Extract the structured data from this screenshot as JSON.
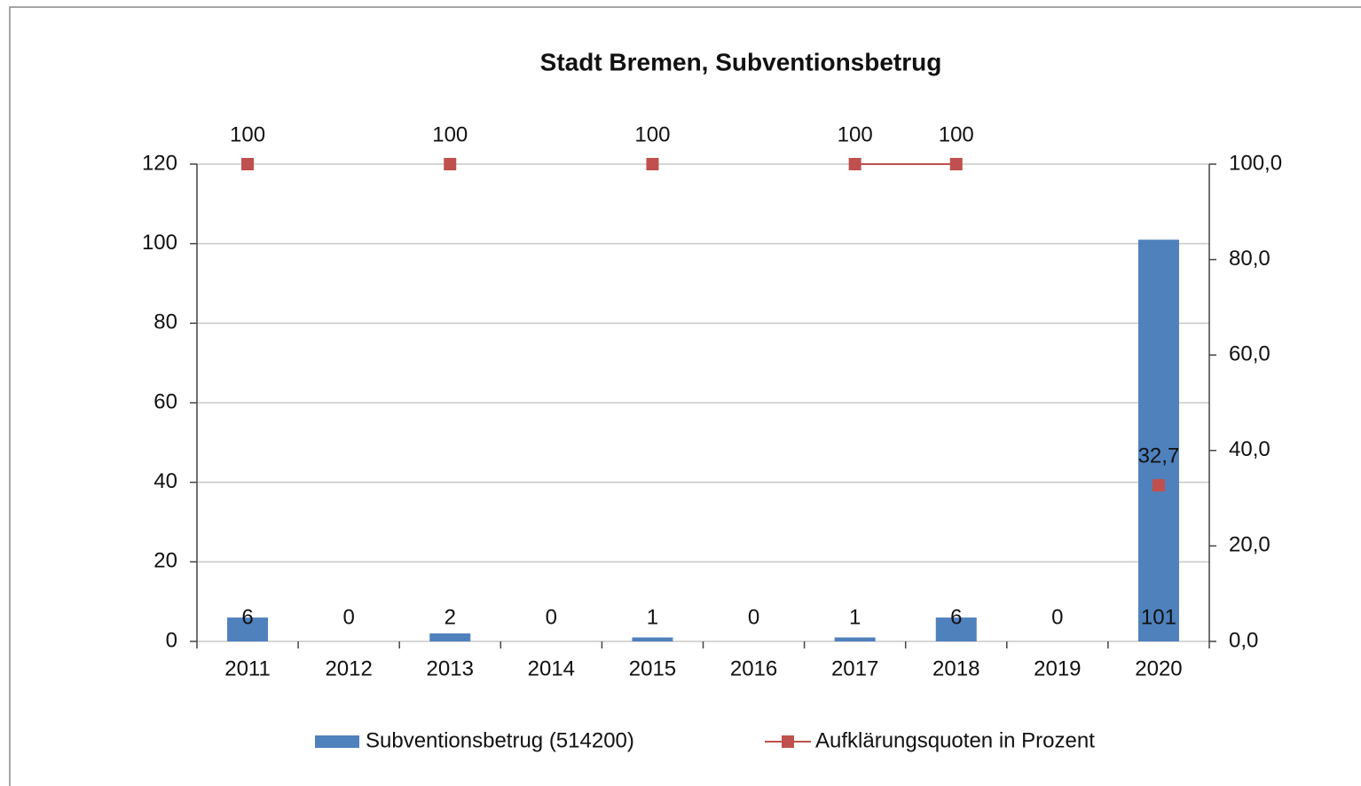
{
  "chart_data": {
    "type": "bar_line",
    "title": "Stadt Bremen, Subventionsbetrug",
    "categories": [
      "2011",
      "2012",
      "2013",
      "2014",
      "2015",
      "2016",
      "2017",
      "2018",
      "2019",
      "2020"
    ],
    "series": [
      {
        "name": "Subventionsbetrug (514200)",
        "type": "bar",
        "color": "#4f81bd",
        "values": [
          6,
          0,
          2,
          0,
          1,
          0,
          1,
          6,
          0,
          101
        ]
      },
      {
        "name": "Aufklärungsquoten in Prozent",
        "type": "line",
        "axis": "y2",
        "color": "#c0504d",
        "values": [
          100,
          null,
          100,
          null,
          100,
          null,
          100,
          100,
          null,
          32.7
        ],
        "value_labels": [
          "100",
          null,
          "100",
          null,
          "100",
          null,
          "100",
          "100",
          null,
          "32,7"
        ]
      }
    ],
    "ylim": [
      0,
      120
    ],
    "yticks": [
      0,
      20,
      40,
      60,
      80,
      100,
      120
    ],
    "y2lim": [
      0,
      100
    ],
    "y2ticks": [
      {
        "value": 0,
        "label": "0,0"
      },
      {
        "value": 20,
        "label": "20,0"
      },
      {
        "value": 40,
        "label": "40,0"
      },
      {
        "value": 60,
        "label": "60,0"
      },
      {
        "value": 80,
        "label": "80,0"
      },
      {
        "value": 100,
        "label": "100,0"
      }
    ],
    "grid": true,
    "legend": "bottom"
  }
}
